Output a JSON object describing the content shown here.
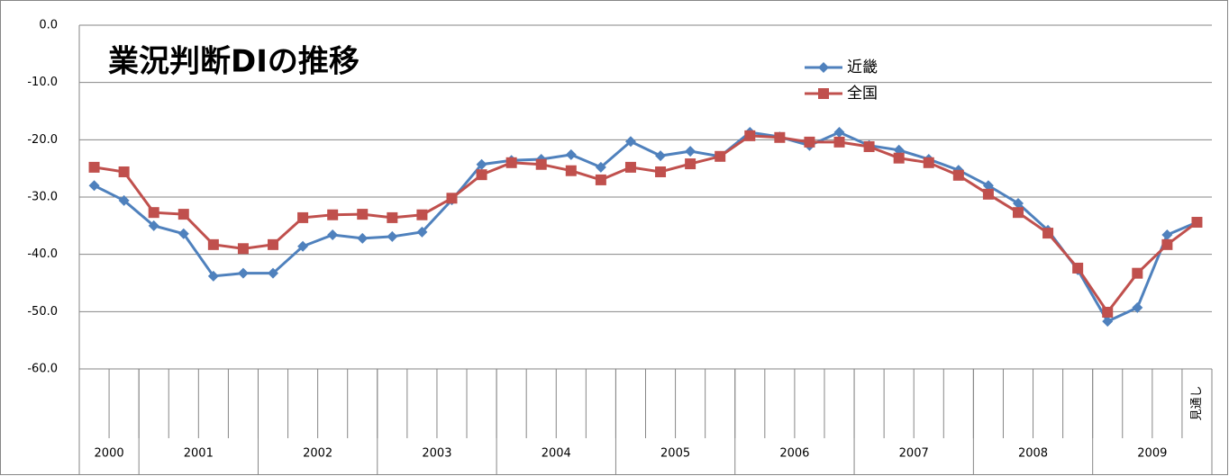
{
  "chart_data": {
    "type": "line",
    "title": "業況判断DIの推移",
    "categories": [
      null,
      null,
      null,
      null,
      null,
      null,
      null,
      null,
      null,
      null,
      null,
      null,
      null,
      null,
      null,
      null,
      null,
      null,
      null,
      null,
      null,
      null,
      null,
      null,
      null,
      null,
      null,
      null,
      null,
      null,
      null,
      null,
      null,
      null,
      null,
      null,
      null,
      "見通し"
    ],
    "category_groups": [
      {
        "label": "2000",
        "count": 2
      },
      {
        "label": "2001",
        "count": 4
      },
      {
        "label": "2002",
        "count": 4
      },
      {
        "label": "2003",
        "count": 4
      },
      {
        "label": "2004",
        "count": 4
      },
      {
        "label": "2005",
        "count": 4
      },
      {
        "label": "2006",
        "count": 4
      },
      {
        "label": "2007",
        "count": 4
      },
      {
        "label": "2008",
        "count": 4
      },
      {
        "label": "2009",
        "count": 4
      }
    ],
    "series": [
      {
        "name": "近畿",
        "color": "#4f81bd",
        "marker": "diamond",
        "values": [
          -28.0,
          -30.6,
          -35.0,
          -36.4,
          -43.8,
          -43.3,
          -43.3,
          -38.6,
          -36.6,
          -37.2,
          -36.9,
          -36.1,
          -30.5,
          -24.3,
          -23.6,
          -23.4,
          -22.6,
          -24.8,
          -20.3,
          -22.8,
          -22.0,
          -22.9,
          -18.7,
          -19.5,
          -21.0,
          -18.7,
          -21.0,
          -21.8,
          -23.4,
          -25.3,
          -28.0,
          -31.1,
          -35.8,
          -42.7,
          -51.7,
          -49.3,
          -36.6,
          -34.4
        ]
      },
      {
        "name": "全国",
        "color": "#c0504d",
        "marker": "square",
        "values": [
          -24.8,
          -25.6,
          -32.7,
          -33.0,
          -38.3,
          -39.0,
          -38.3,
          -33.6,
          -33.1,
          -33.0,
          -33.6,
          -33.1,
          -30.2,
          -26.1,
          -24.0,
          -24.3,
          -25.4,
          -27.0,
          -24.8,
          -25.6,
          -24.2,
          -22.9,
          -19.3,
          -19.6,
          -20.4,
          -20.4,
          -21.2,
          -23.2,
          -24.0,
          -26.2,
          -29.5,
          -32.7,
          -36.3,
          -42.4,
          -50.1,
          -43.3,
          -38.3,
          -34.4
        ]
      }
    ],
    "ylim": [
      -60,
      0
    ],
    "yticks": [
      {
        "value": 0,
        "label": "0.0"
      },
      {
        "value": -10,
        "label": "-10.0"
      },
      {
        "value": -20,
        "label": "-20.0"
      },
      {
        "value": -30,
        "label": "-30.0"
      },
      {
        "value": -40,
        "label": "-40.0"
      },
      {
        "value": -50,
        "label": "-50.0"
      },
      {
        "value": -60,
        "label": "-60.0"
      }
    ],
    "grid": true
  }
}
